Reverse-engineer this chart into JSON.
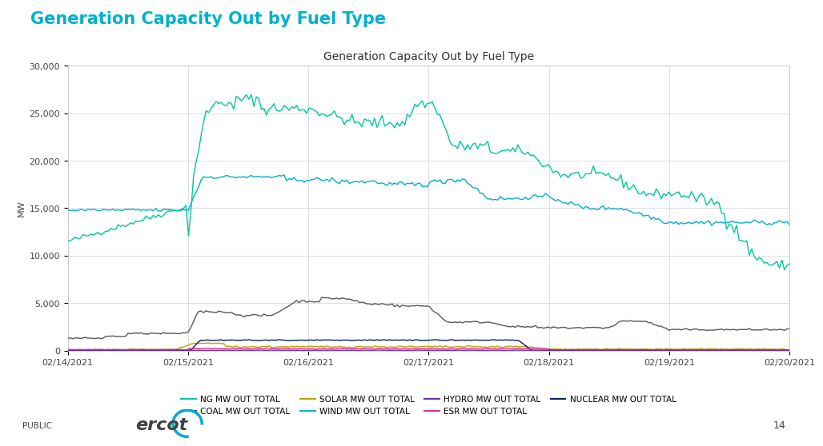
{
  "title": "Generation Capacity Out by Fuel Type",
  "slide_title": "Generation Capacity Out by Fuel Type",
  "ylabel": "MW",
  "ylim": [
    0,
    30000
  ],
  "yticks": [
    0,
    5000,
    10000,
    15000,
    20000,
    25000,
    30000
  ],
  "ytick_labels": [
    "0",
    "5,000",
    "10,000",
    "15,000",
    "20,000",
    "25,000",
    "30,000"
  ],
  "colors": {
    "ng": "#00C8A0",
    "coal": "#595959",
    "solar": "#C8A000",
    "wind": "#00B0CC",
    "hydro": "#7030A0",
    "esr": "#CC3399",
    "nuclear": "#002060"
  },
  "legend_labels": [
    "NG MW OUT TOTAL",
    "COAL MW OUT TOTAL",
    "SOLAR MW OUT TOTAL",
    "WIND MW OUT TOTAL",
    "HYDRO MW OUT TOTAL",
    "ESR MW OUT TOTAL",
    "NUCLEAR MW OUT TOTAL"
  ],
  "slide_title_color": "#00B0CC",
  "background_color": "#FFFFFF",
  "plot_bg_color": "#FFFFFF",
  "grid_color": "#D9D9D9",
  "x_tick_labels": [
    "02/14/2021",
    "02/15/2021",
    "02/16/2021",
    "02/17/2021",
    "02/18/2021",
    "02/19/2021",
    "02/20/2021"
  ]
}
